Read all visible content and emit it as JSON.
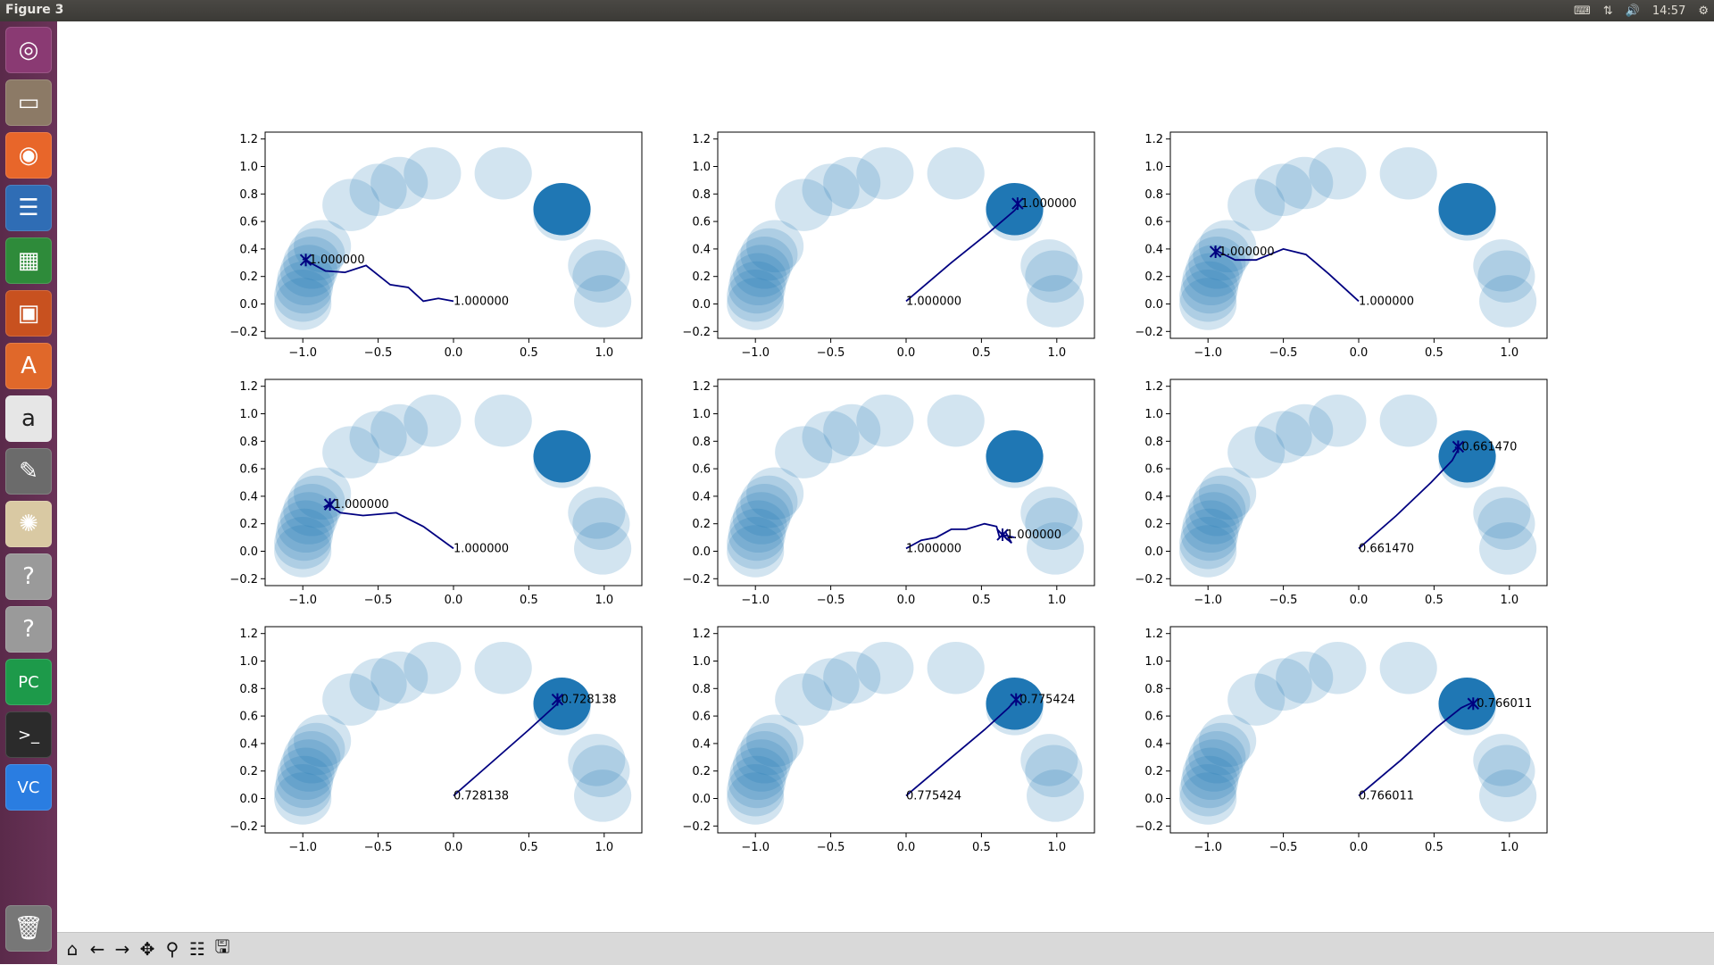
{
  "window": {
    "title": "Figure 3"
  },
  "tray": {
    "keyboard_icon": "keyboard-icon",
    "network_icon": "network-icon",
    "volume_icon": "volume-icon",
    "time": "14:57",
    "settings_icon": "gear-icon"
  },
  "launcher": {
    "items": [
      {
        "name": "ubuntu-dash-icon",
        "glyph": "◎",
        "color": "#8a3a73"
      },
      {
        "name": "files-icon",
        "glyph": "▭",
        "color": "#8c7a66"
      },
      {
        "name": "firefox-icon",
        "glyph": "◉",
        "color": "#e8662a"
      },
      {
        "name": "writer-icon",
        "glyph": "☰",
        "color": "#2f6db5"
      },
      {
        "name": "calc-icon",
        "glyph": "▦",
        "color": "#2e8b3a"
      },
      {
        "name": "impress-icon",
        "glyph": "▣",
        "color": "#c8511f"
      },
      {
        "name": "software-center-icon",
        "glyph": "A",
        "color": "#e0682a"
      },
      {
        "name": "amazon-icon",
        "glyph": "a",
        "color": "#e6e6e6"
      },
      {
        "name": "system-settings-icon",
        "glyph": "✎",
        "color": "#6b6b6b"
      },
      {
        "name": "app-icon",
        "glyph": "✺",
        "color": "#d9c9a3"
      },
      {
        "name": "unknown-app-icon",
        "glyph": "?",
        "color": "#9a9a9a"
      },
      {
        "name": "unknown-app-icon",
        "glyph": "?",
        "color": "#9a9a9a"
      },
      {
        "name": "pycharm-icon",
        "glyph": "PC",
        "color": "#1d9a4a"
      },
      {
        "name": "terminal-icon",
        "glyph": ">_",
        "color": "#2b2b2b"
      },
      {
        "name": "vscode-icon",
        "glyph": "VC",
        "color": "#2a7de1"
      }
    ],
    "trash_icon": "trash-icon"
  },
  "toolbar": {
    "buttons": [
      {
        "name": "home-icon",
        "glyph": "⌂"
      },
      {
        "name": "back-icon",
        "glyph": "←"
      },
      {
        "name": "forward-icon",
        "glyph": "→"
      },
      {
        "name": "pan-icon",
        "glyph": "✥"
      },
      {
        "name": "zoom-icon",
        "glyph": "⚲"
      },
      {
        "name": "configure-subplots-icon",
        "glyph": "☷"
      },
      {
        "name": "save-icon",
        "glyph": "🖫"
      }
    ]
  },
  "chart_data": {
    "type": "scatter",
    "layout": "3x3 subplots",
    "xlim": [
      -1.25,
      1.25
    ],
    "ylim": [
      -0.25,
      1.25
    ],
    "xticks": [
      "−1.0",
      "−0.5",
      "0.0",
      "0.5",
      "1.0"
    ],
    "xtick_values": [
      -1.0,
      -0.5,
      0.0,
      0.5,
      1.0
    ],
    "yticks": [
      "−0.2",
      "0.0",
      "0.2",
      "0.4",
      "0.6",
      "0.8",
      "1.0",
      "1.2"
    ],
    "ytick_values": [
      -0.2,
      0.0,
      0.2,
      0.4,
      0.6,
      0.8,
      1.0,
      1.2
    ],
    "grid": false,
    "colors": {
      "circle": "#1f77b4",
      "path": "#000080"
    },
    "circles": [
      {
        "x": -1.0,
        "y": 0.0,
        "r": 0.19,
        "alpha": 0.2
      },
      {
        "x": -1.0,
        "y": 0.06,
        "r": 0.19,
        "alpha": 0.2
      },
      {
        "x": -0.99,
        "y": 0.12,
        "r": 0.19,
        "alpha": 0.2
      },
      {
        "x": -0.98,
        "y": 0.18,
        "r": 0.19,
        "alpha": 0.2
      },
      {
        "x": -0.96,
        "y": 0.24,
        "r": 0.19,
        "alpha": 0.2
      },
      {
        "x": -0.94,
        "y": 0.3,
        "r": 0.19,
        "alpha": 0.2
      },
      {
        "x": -0.91,
        "y": 0.36,
        "r": 0.19,
        "alpha": 0.2
      },
      {
        "x": -0.87,
        "y": 0.42,
        "r": 0.19,
        "alpha": 0.2
      },
      {
        "x": -0.68,
        "y": 0.72,
        "r": 0.19,
        "alpha": 0.2
      },
      {
        "x": -0.5,
        "y": 0.83,
        "r": 0.19,
        "alpha": 0.2
      },
      {
        "x": -0.36,
        "y": 0.88,
        "r": 0.19,
        "alpha": 0.2
      },
      {
        "x": -0.14,
        "y": 0.95,
        "r": 0.19,
        "alpha": 0.2
      },
      {
        "x": 0.33,
        "y": 0.95,
        "r": 0.19,
        "alpha": 0.2
      },
      {
        "x": 0.72,
        "y": 0.65,
        "r": 0.19,
        "alpha": 0.2
      },
      {
        "x": 0.95,
        "y": 0.28,
        "r": 0.19,
        "alpha": 0.2
      },
      {
        "x": 0.98,
        "y": 0.2,
        "r": 0.19,
        "alpha": 0.2
      },
      {
        "x": 0.99,
        "y": 0.02,
        "r": 0.19,
        "alpha": 0.2
      }
    ],
    "target": {
      "x": 0.72,
      "y": 0.69,
      "r": 0.19
    },
    "subplots": [
      {
        "path": [
          [
            0.0,
            0.02
          ],
          [
            -0.1,
            0.04
          ],
          [
            -0.2,
            0.02
          ],
          [
            -0.3,
            0.12
          ],
          [
            -0.42,
            0.14
          ],
          [
            -0.58,
            0.28
          ],
          [
            -0.72,
            0.23
          ],
          [
            -0.85,
            0.24
          ],
          [
            -0.95,
            0.3
          ],
          [
            -0.99,
            0.33
          ],
          [
            -1.0,
            0.32
          ]
        ],
        "start_label": "1.000000",
        "end_label": "1.000000",
        "end": [
          -0.98,
          0.32
        ],
        "target_highlight": true
      },
      {
        "path": [
          [
            0.0,
            0.02
          ],
          [
            0.3,
            0.3
          ],
          [
            0.55,
            0.52
          ],
          [
            0.72,
            0.68
          ],
          [
            0.75,
            0.72
          ],
          [
            0.74,
            0.74
          ]
        ],
        "start_label": "1.000000",
        "end_label": "1.000000",
        "end": [
          0.74,
          0.73
        ],
        "target_highlight": true
      },
      {
        "path": [
          [
            0.0,
            0.02
          ],
          [
            -0.2,
            0.22
          ],
          [
            -0.35,
            0.36
          ],
          [
            -0.5,
            0.4
          ],
          [
            -0.68,
            0.32
          ],
          [
            -0.82,
            0.32
          ],
          [
            -0.93,
            0.38
          ],
          [
            -0.95,
            0.4
          ],
          [
            -0.94,
            0.36
          ]
        ],
        "start_label": "1.000000",
        "end_label": "1.000000",
        "end": [
          -0.95,
          0.38
        ],
        "target_highlight": true
      },
      {
        "path": [
          [
            0.0,
            0.02
          ],
          [
            -0.2,
            0.18
          ],
          [
            -0.38,
            0.28
          ],
          [
            -0.6,
            0.26
          ],
          [
            -0.75,
            0.28
          ],
          [
            -0.82,
            0.33
          ],
          [
            -0.8,
            0.36
          ],
          [
            -0.86,
            0.32
          ],
          [
            -0.82,
            0.34
          ]
        ],
        "start_label": "1.000000",
        "end_label": "1.000000",
        "end": [
          -0.82,
          0.34
        ],
        "target_highlight": true
      },
      {
        "path": [
          [
            0.0,
            0.02
          ],
          [
            0.1,
            0.08
          ],
          [
            0.2,
            0.1
          ],
          [
            0.3,
            0.16
          ],
          [
            0.4,
            0.16
          ],
          [
            0.52,
            0.2
          ],
          [
            0.6,
            0.18
          ],
          [
            0.62,
            0.1
          ],
          [
            0.66,
            0.14
          ],
          [
            0.7,
            0.06
          ],
          [
            0.64,
            0.12
          ],
          [
            0.72,
            0.1
          ]
        ],
        "start_label": "1.000000",
        "end_label": "1.000000",
        "end": [
          0.64,
          0.12
        ],
        "target_highlight": true
      },
      {
        "path": [
          [
            0.0,
            0.02
          ],
          [
            0.25,
            0.26
          ],
          [
            0.48,
            0.5
          ],
          [
            0.62,
            0.66
          ],
          [
            0.66,
            0.74
          ],
          [
            0.64,
            0.76
          ]
        ],
        "start_label": "0.661470",
        "end_label": "0.661470",
        "end": [
          0.66,
          0.76
        ],
        "target_highlight": true
      },
      {
        "path": [
          [
            0.0,
            0.02
          ],
          [
            0.25,
            0.26
          ],
          [
            0.5,
            0.5
          ],
          [
            0.68,
            0.68
          ],
          [
            0.71,
            0.72
          ]
        ],
        "start_label": "0.728138",
        "end_label": "0.728138",
        "end": [
          0.69,
          0.72
        ],
        "target_highlight": true
      },
      {
        "path": [
          [
            0.0,
            0.02
          ],
          [
            0.28,
            0.28
          ],
          [
            0.52,
            0.5
          ],
          [
            0.68,
            0.66
          ],
          [
            0.73,
            0.72
          ],
          [
            0.74,
            0.7
          ]
        ],
        "start_label": "0.775424",
        "end_label": "0.775424",
        "end": [
          0.73,
          0.72
        ],
        "target_highlight": true
      },
      {
        "path": [
          [
            0.0,
            0.02
          ],
          [
            0.28,
            0.28
          ],
          [
            0.52,
            0.52
          ],
          [
            0.68,
            0.66
          ],
          [
            0.74,
            0.69
          ],
          [
            0.76,
            0.7
          ]
        ],
        "start_label": "0.766011",
        "end_label": "0.766011",
        "end": [
          0.76,
          0.69
        ],
        "target_highlight": true
      }
    ]
  }
}
